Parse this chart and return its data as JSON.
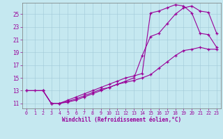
{
  "bg_color": "#c5e8f0",
  "line_color": "#990099",
  "xlim": [
    -0.5,
    23.5
  ],
  "ylim": [
    10.2,
    26.8
  ],
  "xticks": [
    0,
    1,
    2,
    3,
    4,
    5,
    6,
    7,
    8,
    9,
    10,
    11,
    12,
    13,
    14,
    15,
    16,
    17,
    18,
    19,
    20,
    21,
    22,
    23
  ],
  "yticks": [
    11,
    13,
    15,
    17,
    19,
    21,
    23,
    25
  ],
  "xlabel": "Windchill (Refroidissement éolien,°C)",
  "line1_x": [
    0,
    1,
    2,
    3,
    4,
    5,
    6,
    7,
    8,
    9,
    10,
    11,
    12,
    13,
    14,
    15,
    16,
    17,
    18,
    19,
    20,
    21,
    22,
    23
  ],
  "line1_y": [
    13.0,
    13.0,
    13.0,
    11.0,
    11.0,
    11.3,
    11.7,
    12.2,
    12.7,
    13.2,
    13.5,
    14.0,
    14.3,
    14.6,
    15.0,
    15.5,
    16.5,
    17.5,
    18.5,
    19.3,
    19.5,
    19.8,
    19.5,
    19.5
  ],
  "line2_x": [
    2,
    3,
    4,
    5,
    6,
    7,
    8,
    9,
    10,
    11,
    12,
    13,
    14,
    15,
    16,
    17,
    18,
    19,
    20,
    21,
    22,
    23
  ],
  "line2_y": [
    13.0,
    11.0,
    11.0,
    11.2,
    11.5,
    12.0,
    12.5,
    13.0,
    13.5,
    14.0,
    14.5,
    15.0,
    18.5,
    21.5,
    22.0,
    23.5,
    25.0,
    26.0,
    26.3,
    25.5,
    25.3,
    22.0
  ],
  "line3_x": [
    0,
    2,
    3,
    4,
    5,
    6,
    7,
    8,
    9,
    10,
    11,
    12,
    13,
    14,
    15,
    16,
    17,
    18,
    19,
    20,
    21,
    22,
    23
  ],
  "line3_y": [
    13.0,
    13.0,
    11.0,
    11.0,
    11.5,
    12.0,
    12.5,
    13.0,
    13.5,
    14.0,
    14.5,
    15.0,
    15.3,
    15.7,
    25.2,
    25.5,
    26.0,
    26.5,
    26.3,
    25.2,
    22.0,
    21.8,
    19.8
  ]
}
